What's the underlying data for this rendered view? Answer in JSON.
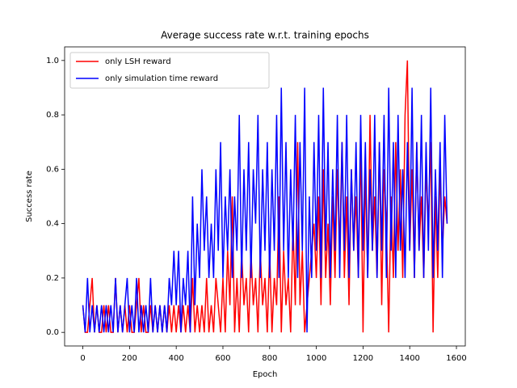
{
  "chart_data": {
    "type": "line",
    "title": "Average success rate w.r.t. training epochs",
    "xlabel": "Epoch",
    "ylabel": "Success rate",
    "x": [
      0,
      10,
      20,
      30,
      40,
      50,
      60,
      70,
      80,
      90,
      100,
      110,
      120,
      130,
      140,
      150,
      160,
      170,
      180,
      190,
      200,
      210,
      220,
      230,
      240,
      250,
      260,
      270,
      280,
      290,
      300,
      310,
      320,
      330,
      340,
      350,
      360,
      370,
      380,
      390,
      400,
      410,
      420,
      430,
      440,
      450,
      460,
      470,
      480,
      490,
      500,
      510,
      520,
      530,
      540,
      550,
      560,
      570,
      580,
      590,
      600,
      610,
      620,
      630,
      640,
      650,
      660,
      670,
      680,
      690,
      700,
      710,
      720,
      730,
      740,
      750,
      760,
      770,
      780,
      790,
      800,
      810,
      820,
      830,
      840,
      850,
      860,
      870,
      880,
      890,
      900,
      910,
      920,
      930,
      940,
      950,
      960,
      970,
      980,
      990,
      1000,
      1010,
      1020,
      1030,
      1040,
      1050,
      1060,
      1070,
      1080,
      1090,
      1100,
      1110,
      1120,
      1130,
      1140,
      1150,
      1160,
      1170,
      1180,
      1190,
      1200,
      1210,
      1220,
      1230,
      1240,
      1250,
      1260,
      1270,
      1280,
      1290,
      1300,
      1310,
      1320,
      1330,
      1340,
      1350,
      1360,
      1370,
      1380,
      1390,
      1400,
      1410,
      1420,
      1430,
      1440,
      1450,
      1460,
      1470,
      1480,
      1490,
      1500,
      1510,
      1520,
      1530,
      1540,
      1550,
      1560
    ],
    "series": [
      {
        "name": "only LSH reward",
        "color": "#ff0000",
        "values": [
          0.1,
          0.0,
          0.0,
          0.1,
          0.2,
          0.0,
          0.1,
          0.0,
          0.0,
          0.1,
          0.0,
          0.1,
          0.0,
          0.0,
          0.2,
          0.0,
          0.1,
          0.0,
          0.1,
          0.0,
          0.1,
          0.0,
          0.0,
          0.1,
          0.2,
          0.0,
          0.1,
          0.0,
          0.0,
          0.1,
          0.0,
          0.1,
          0.0,
          0.1,
          0.0,
          0.1,
          0.0,
          0.1,
          0.0,
          0.1,
          0.0,
          0.1,
          0.0,
          0.1,
          0.0,
          0.1,
          0.0,
          0.2,
          0.0,
          0.1,
          0.0,
          0.1,
          0.0,
          0.2,
          0.0,
          0.1,
          0.0,
          0.2,
          0.1,
          0.0,
          0.2,
          0.0,
          0.3,
          0.1,
          0.5,
          0.0,
          0.2,
          0.0,
          0.3,
          0.1,
          0.2,
          0.0,
          0.3,
          0.1,
          0.2,
          0.0,
          0.3,
          0.1,
          0.2,
          0.0,
          0.3,
          0.0,
          0.2,
          0.1,
          0.5,
          0.0,
          0.3,
          0.1,
          0.2,
          0.0,
          0.4,
          0.1,
          0.7,
          0.1,
          0.3,
          0.0,
          0.1,
          0.2,
          0.3,
          0.4,
          0.2,
          0.5,
          0.1,
          0.6,
          0.2,
          0.4,
          0.1,
          0.5,
          0.2,
          0.6,
          0.3,
          0.7,
          0.2,
          0.5,
          0.1,
          0.6,
          0.3,
          0.5,
          0.2,
          0.7,
          0.0,
          0.6,
          0.2,
          0.8,
          0.3,
          0.5,
          0.2,
          0.7,
          0.1,
          0.6,
          0.4,
          0.0,
          0.5,
          0.2,
          0.7,
          0.3,
          0.6,
          0.2,
          0.8,
          1.0,
          0.3,
          0.6,
          0.2,
          0.7,
          0.3,
          0.5,
          0.2,
          0.6,
          0.4,
          0.7,
          0.0,
          0.5,
          0.2,
          0.6,
          0.3,
          0.5,
          0.4
        ]
      },
      {
        "name": "only simulation time reward",
        "color": "#0000ff",
        "values": [
          0.1,
          0.0,
          0.2,
          0.0,
          0.1,
          0.0,
          0.1,
          0.0,
          0.1,
          0.0,
          0.1,
          0.0,
          0.1,
          0.0,
          0.2,
          0.0,
          0.1,
          0.0,
          0.1,
          0.2,
          0.0,
          0.1,
          0.0,
          0.2,
          0.0,
          0.1,
          0.0,
          0.1,
          0.0,
          0.2,
          0.0,
          0.1,
          0.0,
          0.1,
          0.0,
          0.1,
          0.0,
          0.2,
          0.1,
          0.3,
          0.1,
          0.3,
          0.0,
          0.2,
          0.1,
          0.3,
          0.0,
          0.5,
          0.1,
          0.4,
          0.2,
          0.6,
          0.3,
          0.5,
          0.2,
          0.4,
          0.2,
          0.6,
          0.3,
          0.7,
          0.2,
          0.5,
          0.3,
          0.6,
          0.2,
          0.5,
          0.3,
          0.8,
          0.2,
          0.6,
          0.3,
          0.7,
          0.2,
          0.6,
          0.4,
          0.8,
          0.2,
          0.6,
          0.3,
          0.7,
          0.2,
          0.6,
          0.3,
          0.8,
          0.2,
          0.9,
          0.3,
          0.7,
          0.2,
          0.6,
          0.3,
          0.8,
          0.2,
          0.7,
          0.3,
          0.9,
          0.0,
          0.5,
          0.2,
          0.7,
          0.3,
          0.8,
          0.2,
          0.9,
          0.3,
          0.7,
          0.2,
          0.6,
          0.3,
          0.8,
          0.2,
          0.7,
          0.3,
          0.8,
          0.2,
          0.6,
          0.3,
          0.7,
          0.2,
          0.8,
          0.3,
          0.7,
          0.2,
          0.6,
          0.3,
          0.8,
          0.2,
          0.7,
          0.3,
          0.8,
          0.2,
          0.9,
          0.3,
          0.7,
          0.2,
          0.8,
          0.3,
          0.6,
          0.2,
          0.7,
          0.3,
          0.9,
          0.2,
          0.7,
          0.3,
          0.8,
          0.2,
          0.7,
          0.3,
          0.9,
          0.2,
          0.6,
          0.3,
          0.7,
          0.2,
          0.8,
          0.4
        ]
      }
    ],
    "xlim": [
      -78,
      1638
    ],
    "ylim": [
      -0.05,
      1.05
    ],
    "xticks": [
      0,
      200,
      400,
      600,
      800,
      1000,
      1200,
      1400,
      1600
    ],
    "yticks": [
      {
        "value": 0,
        "label": "0.0"
      },
      {
        "value": 0.2,
        "label": "0.2"
      },
      {
        "value": 0.4,
        "label": "0.4"
      },
      {
        "value": 0.6,
        "label": "0.6"
      },
      {
        "value": 0.8,
        "label": "0.8"
      },
      {
        "value": 1,
        "label": "1.0"
      }
    ],
    "legend": "upper left"
  }
}
